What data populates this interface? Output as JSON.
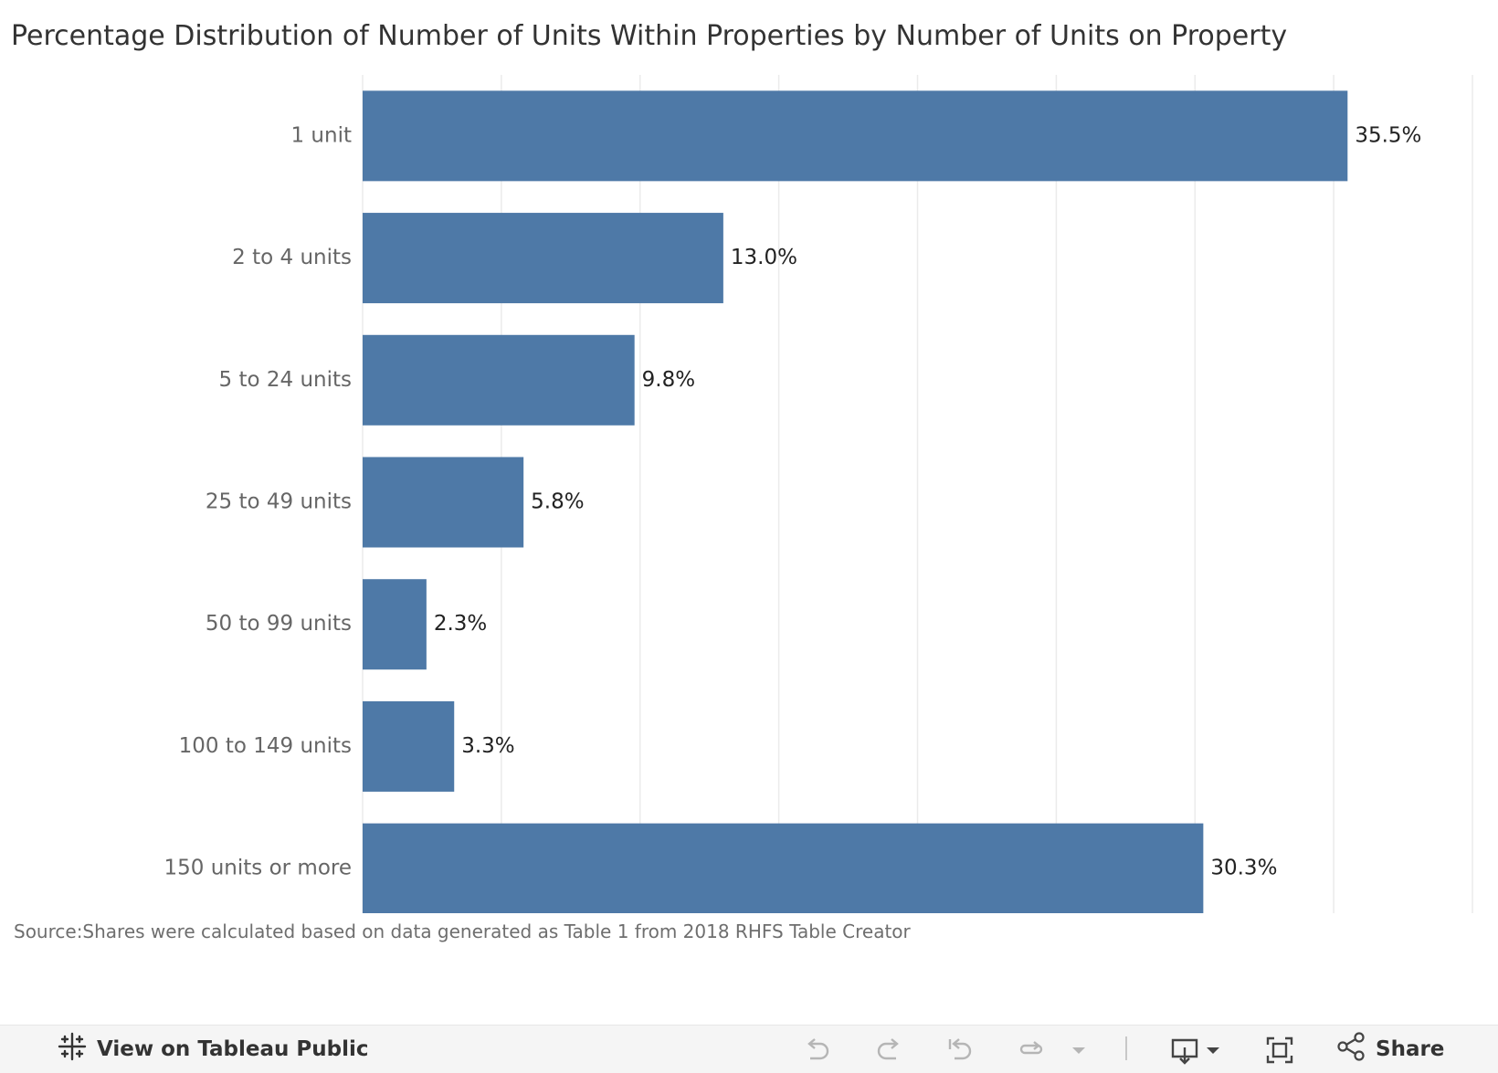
{
  "title": "Percentage Distribution of Number of Units Within Properties by Number of Units on Property",
  "source": "Source:Shares were calculated based on data generated as Table 1 from 2018 RHFS Table Creator",
  "colors": {
    "bar": "#4e79a7",
    "grid": "#ebebeb",
    "category_label": "#666666",
    "value_label": "#222222"
  },
  "chart_data": {
    "type": "bar",
    "orientation": "horizontal",
    "title": "Percentage Distribution of Number of Units Within Properties by Number of Units on Property",
    "categories": [
      "1 unit",
      "2 to 4 units",
      "5 to 24 units",
      "25 to 49 units",
      "50 to 99 units",
      "100 to 149 units",
      "150 units or more"
    ],
    "values": [
      35.5,
      13.0,
      9.8,
      5.8,
      2.3,
      3.3,
      30.3
    ],
    "value_labels": [
      "35.5%",
      "13.0%",
      "9.8%",
      "5.8%",
      "2.3%",
      "3.3%",
      "30.3%"
    ],
    "xlim": [
      0,
      40
    ],
    "grid_step": 5,
    "xlabel": "",
    "ylabel": "",
    "grid": true
  },
  "toolbar": {
    "view_on_tableau": "View on Tableau Public",
    "share": "Share",
    "icons": [
      "tableau-logo-icon",
      "undo-icon",
      "redo-icon",
      "revert-icon",
      "refresh-icon",
      "dropdown-arrow-icon",
      "download-icon",
      "fullscreen-icon",
      "share-icon"
    ]
  }
}
